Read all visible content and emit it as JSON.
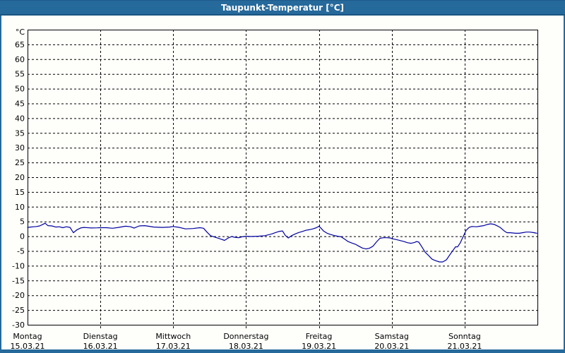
{
  "window": {
    "title": "Taupunkt-Temperatur [°C]",
    "titlebar_bg": "#26699B",
    "border_color": "#26699B",
    "content_bg": "#FEFFFB"
  },
  "chart_data": {
    "type": "line",
    "title": "Taupunkt-Temperatur [°C]",
    "y_unit_label": "°C",
    "ylim": [
      -30,
      70
    ],
    "ytick_step": 5,
    "ytick_labels": [
      "65",
      "60",
      "55",
      "50",
      "45",
      "40",
      "35",
      "30",
      "25",
      "20",
      "15",
      "10",
      "5",
      "0",
      "-5",
      "-10",
      "-15",
      "-20",
      "-25",
      "-30"
    ],
    "grid": "dashed",
    "grid_color": "#000000",
    "line_color": "#0000A0",
    "axis_color": "#000000",
    "x_days": [
      {
        "weekday": "Montag",
        "date": "15.03.21"
      },
      {
        "weekday": "Dienstag",
        "date": "16.03.21"
      },
      {
        "weekday": "Mittwoch",
        "date": "17.03.21"
      },
      {
        "weekday": "Donnerstag",
        "date": "18.03.21"
      },
      {
        "weekday": "Freitag",
        "date": "19.03.21"
      },
      {
        "weekday": "Samstag",
        "date": "20.03.21"
      },
      {
        "weekday": "Sonntag",
        "date": "21.03.21"
      }
    ],
    "x_hours_total": 168,
    "series": [
      {
        "name": "Taupunkt-Temperatur",
        "points": [
          [
            0,
            3.0
          ],
          [
            1,
            3.1
          ],
          [
            2,
            3.2
          ],
          [
            3,
            3.3
          ],
          [
            4,
            3.5
          ],
          [
            5,
            4.0
          ],
          [
            5.8,
            4.4
          ],
          [
            6.7,
            3.6
          ],
          [
            8,
            3.5
          ],
          [
            9.3,
            3.1
          ],
          [
            10.5,
            3.2
          ],
          [
            11.6,
            2.9
          ],
          [
            12.8,
            3.2
          ],
          [
            14,
            3.0
          ],
          [
            14.6,
            2.0
          ],
          [
            15.1,
            1.2
          ],
          [
            16.3,
            2.2
          ],
          [
            17.5,
            2.8
          ],
          [
            18.6,
            3.0
          ],
          [
            21,
            2.8
          ],
          [
            23,
            2.85
          ],
          [
            24,
            2.9
          ],
          [
            26,
            2.9
          ],
          [
            28,
            2.7
          ],
          [
            30,
            3.0
          ],
          [
            32.3,
            3.4
          ],
          [
            34,
            3.2
          ],
          [
            35.1,
            2.75
          ],
          [
            36.8,
            3.5
          ],
          [
            38.6,
            3.6
          ],
          [
            39.8,
            3.4
          ],
          [
            41.6,
            3.1
          ],
          [
            44.4,
            3.0
          ],
          [
            46.8,
            3.1
          ],
          [
            48,
            3.3
          ],
          [
            50,
            3.0
          ],
          [
            52,
            2.5
          ],
          [
            54.5,
            2.6
          ],
          [
            56.8,
            2.9
          ],
          [
            58,
            2.7
          ],
          [
            59.1,
            1.4
          ],
          [
            60.3,
            0.2
          ],
          [
            61.4,
            -0.2
          ],
          [
            62.6,
            -0.6
          ],
          [
            63.8,
            -1.0
          ],
          [
            64.9,
            -1.4
          ],
          [
            66.1,
            -0.6
          ],
          [
            67.3,
            -0.1
          ],
          [
            68.4,
            -0.4
          ],
          [
            69.6,
            -0.5
          ],
          [
            70.7,
            -0.2
          ],
          [
            72,
            0.0
          ],
          [
            73.5,
            -0.1
          ],
          [
            76,
            0.0
          ],
          [
            78.2,
            0.2
          ],
          [
            80.5,
            0.8
          ],
          [
            81.7,
            1.25
          ],
          [
            82.8,
            1.6
          ],
          [
            84,
            1.8
          ],
          [
            84.9,
            0.3
          ],
          [
            85.9,
            -0.6
          ],
          [
            87,
            0.2
          ],
          [
            88.2,
            0.8
          ],
          [
            89.3,
            1.25
          ],
          [
            90.5,
            1.6
          ],
          [
            91.7,
            2.0
          ],
          [
            92.8,
            2.2
          ],
          [
            94,
            2.5
          ],
          [
            95.2,
            2.9
          ],
          [
            96,
            3.4
          ],
          [
            96.8,
            2.6
          ],
          [
            97.5,
            1.8
          ],
          [
            98.7,
            1.0
          ],
          [
            99.8,
            0.6
          ],
          [
            101,
            0.25
          ],
          [
            102.2,
            0.0
          ],
          [
            103.3,
            -0.2
          ],
          [
            104.5,
            -1.0
          ],
          [
            105.6,
            -1.8
          ],
          [
            106.8,
            -2.3
          ],
          [
            108,
            -2.7
          ],
          [
            109.2,
            -3.4
          ],
          [
            110.3,
            -4.0
          ],
          [
            111.5,
            -4.3
          ],
          [
            112.6,
            -4.1
          ],
          [
            113.8,
            -3.4
          ],
          [
            115,
            -1.9
          ],
          [
            116.1,
            -0.7
          ],
          [
            117.3,
            -0.5
          ],
          [
            118.4,
            -0.5
          ],
          [
            119.6,
            -0.6
          ],
          [
            120,
            -0.8
          ],
          [
            121.7,
            -1.2
          ],
          [
            124,
            -1.8
          ],
          [
            125.2,
            -2.2
          ],
          [
            126.4,
            -2.4
          ],
          [
            127.5,
            -2.1
          ],
          [
            128.2,
            -1.8
          ],
          [
            128.9,
            -2.0
          ],
          [
            129.8,
            -3.4
          ],
          [
            131,
            -5.4
          ],
          [
            132.2,
            -6.6
          ],
          [
            133.3,
            -7.8
          ],
          [
            134.5,
            -8.3
          ],
          [
            135.7,
            -8.7
          ],
          [
            136.8,
            -8.7
          ],
          [
            138,
            -8.0
          ],
          [
            139.2,
            -6.2
          ],
          [
            140.3,
            -4.6
          ],
          [
            141,
            -3.6
          ],
          [
            141.7,
            -3.6
          ],
          [
            142.6,
            -2.2
          ],
          [
            143.5,
            -0.2
          ],
          [
            144.5,
            2.0
          ],
          [
            145.5,
            3.0
          ],
          [
            146.4,
            3.3
          ],
          [
            148,
            3.2
          ],
          [
            149.1,
            3.4
          ],
          [
            150.3,
            3.6
          ],
          [
            151.5,
            4.0
          ],
          [
            152.6,
            4.2
          ],
          [
            153.8,
            4.0
          ],
          [
            155,
            3.4
          ],
          [
            155.7,
            3.0
          ],
          [
            156.6,
            2.2
          ],
          [
            157.3,
            1.6
          ],
          [
            158,
            1.2
          ],
          [
            159,
            1.2
          ],
          [
            160.8,
            1.0
          ],
          [
            162,
            1.0
          ],
          [
            163.1,
            1.2
          ],
          [
            164.3,
            1.4
          ],
          [
            165.4,
            1.4
          ],
          [
            166.6,
            1.25
          ],
          [
            167.8,
            1.0
          ]
        ]
      }
    ]
  }
}
